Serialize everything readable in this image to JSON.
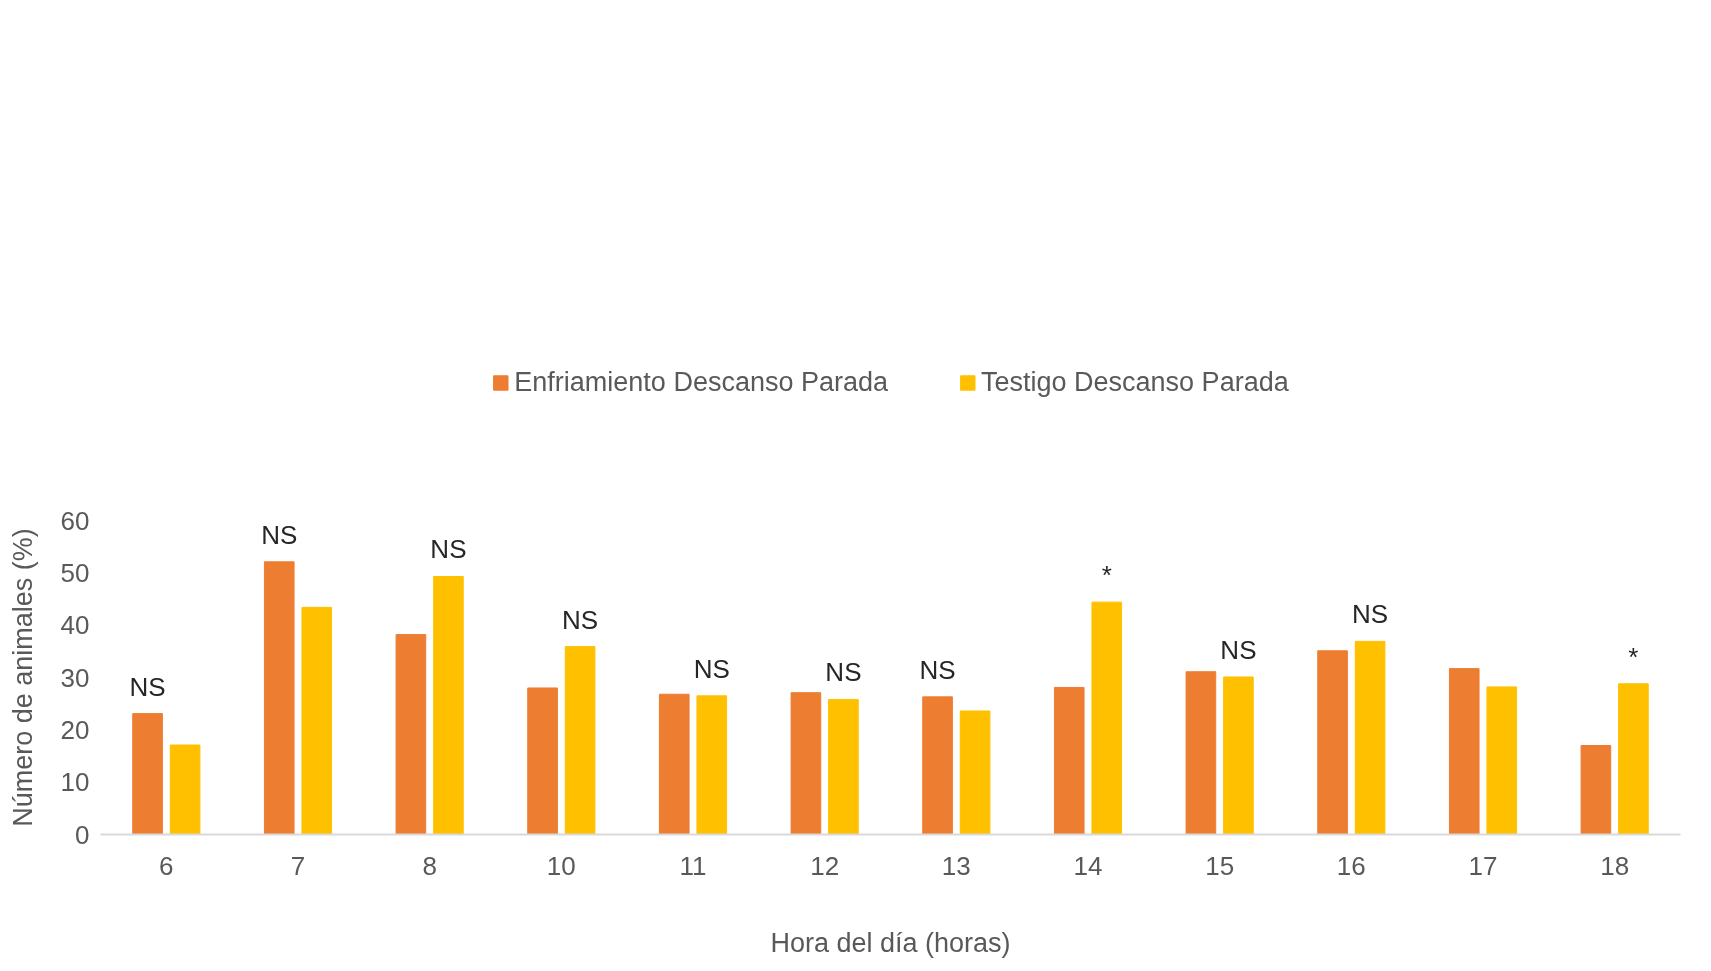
{
  "chart_data": {
    "type": "bar",
    "xlabel": "Hora del día (horas)",
    "ylabel": "Número de animales (%)",
    "categories": [
      "6",
      "7",
      "8",
      "10",
      "11",
      "12",
      "13",
      "14",
      "15",
      "16",
      "17",
      "18"
    ],
    "series": [
      {
        "name": "Enfriamiento Descanso Parada",
        "color": "#ed7d31",
        "values": [
          23.1,
          52.1,
          38.2,
          28.0,
          26.8,
          27.1,
          26.3,
          28.1,
          31.1,
          35.1,
          31.7,
          17.0
        ]
      },
      {
        "name": "Testigo Descanso Parada",
        "color": "#ffc000",
        "values": [
          17.1,
          43.4,
          49.3,
          35.9,
          26.5,
          25.8,
          23.6,
          44.4,
          30.1,
          36.9,
          28.2,
          28.8
        ]
      }
    ],
    "ylim": [
      0,
      60
    ],
    "yticks": [
      0,
      10,
      20,
      30,
      40,
      50,
      60
    ],
    "grid": false,
    "legend": "top",
    "annotations": [
      {
        "text": "NS",
        "x": "6",
        "y": 23.1
      },
      {
        "text": "NS",
        "x": "7",
        "y": 52.1
      },
      {
        "text": "NS",
        "x": "8",
        "y": 49.3
      },
      {
        "text": "NS",
        "x": "10",
        "y": 35.9
      },
      {
        "text": "NS",
        "x": "11",
        "y": 26.5
      },
      {
        "text": "NS",
        "x": "12",
        "y": 25.8
      },
      {
        "text": "NS",
        "x": "13",
        "y": 26.3
      },
      {
        "text": "*",
        "x": "14",
        "y": 44.4
      },
      {
        "text": "NS",
        "x": "15",
        "y": 30.1
      },
      {
        "text": "NS",
        "x": "16",
        "y": 36.9
      },
      {
        "text": "*",
        "x": "18",
        "y": 28.8
      }
    ]
  }
}
